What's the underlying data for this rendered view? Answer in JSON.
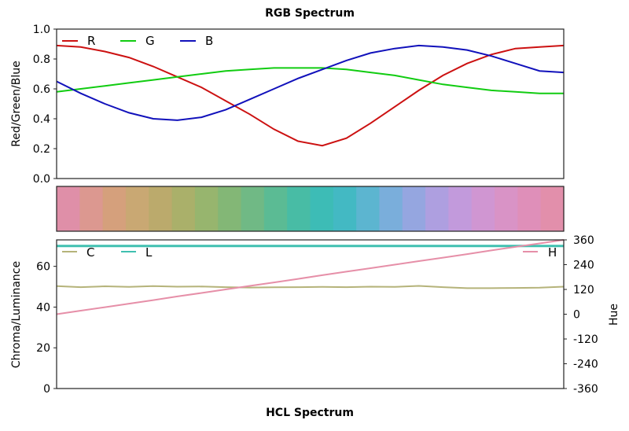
{
  "titles": {
    "top": "RGB Spectrum",
    "bottom": "HCL Spectrum"
  },
  "chart_data": [
    {
      "type": "line",
      "title": "RGB Spectrum",
      "xlabel": "",
      "ylabel": "Red/Green/Blue",
      "ylim": [
        0.0,
        1.0
      ],
      "yticks": [
        "0.0",
        "0.2",
        "0.4",
        "0.6",
        "0.8",
        "1.0"
      ],
      "legend_position": "upper left",
      "x": [
        0,
        1,
        2,
        3,
        4,
        5,
        6,
        7,
        8,
        9,
        10,
        11,
        12,
        13,
        14,
        15,
        16,
        17,
        18,
        19,
        20,
        21
      ],
      "series": [
        {
          "name": "R",
          "color": "#cc1111",
          "values": [
            0.89,
            0.88,
            0.85,
            0.81,
            0.75,
            0.68,
            0.61,
            0.52,
            0.43,
            0.33,
            0.25,
            0.22,
            0.27,
            0.37,
            0.48,
            0.59,
            0.69,
            0.77,
            0.83,
            0.87,
            0.88,
            0.89
          ]
        },
        {
          "name": "G",
          "color": "#11cc11",
          "values": [
            0.58,
            0.6,
            0.62,
            0.64,
            0.66,
            0.68,
            0.7,
            0.72,
            0.73,
            0.74,
            0.74,
            0.74,
            0.73,
            0.71,
            0.69,
            0.66,
            0.63,
            0.61,
            0.59,
            0.58,
            0.57,
            0.57
          ]
        },
        {
          "name": "B",
          "color": "#1111bb",
          "values": [
            0.65,
            0.57,
            0.5,
            0.44,
            0.4,
            0.39,
            0.41,
            0.46,
            0.53,
            0.6,
            0.67,
            0.73,
            0.79,
            0.84,
            0.87,
            0.89,
            0.88,
            0.86,
            0.82,
            0.77,
            0.72,
            0.71
          ]
        }
      ]
    },
    {
      "type": "heatmap",
      "title": "",
      "swatches": [
        "#df8fa8",
        "#dc9890",
        "#d5a07c",
        "#c9a873",
        "#bbaa6c",
        "#aab06a",
        "#97b56e",
        "#83b776",
        "#70b985",
        "#5bbb94",
        "#48bca5",
        "#3dbcb6",
        "#43b9c3",
        "#5cb5d0",
        "#7aaedb",
        "#95a6e0",
        "#ae9fe0",
        "#c29adc",
        "#d096d2",
        "#d993c6",
        "#df8fb9",
        "#e28fab"
      ]
    },
    {
      "type": "line",
      "title": "HCL Spectrum",
      "xlabel": "",
      "ylabel": "Chroma/Luminance",
      "ylabel_right": "Hue",
      "ylim": [
        0,
        73
      ],
      "ylim_right": [
        -360,
        360
      ],
      "yticks": [
        "0",
        "20",
        "40",
        "60"
      ],
      "yticks_right": [
        "-360",
        "-240",
        "-120",
        "0",
        "120",
        "240",
        "360"
      ],
      "legend_position": "upper left / upper right",
      "x": [
        0,
        1,
        2,
        3,
        4,
        5,
        6,
        7,
        8,
        9,
        10,
        11,
        12,
        13,
        14,
        15,
        16,
        17,
        18,
        19,
        20,
        21
      ],
      "series": [
        {
          "name": "C",
          "axis": "left",
          "color": "#b5b37a",
          "values": [
            50.3,
            49.8,
            50.2,
            49.9,
            50.3,
            50.0,
            50.1,
            49.8,
            49.6,
            49.7,
            49.8,
            49.9,
            49.8,
            50.0,
            49.9,
            50.4,
            49.8,
            49.3,
            49.3,
            49.4,
            49.5,
            50.0
          ]
        },
        {
          "name": "L",
          "axis": "left",
          "color": "#40c0b0",
          "values": [
            70,
            70,
            70,
            70,
            70,
            70,
            70,
            70,
            70,
            70,
            70,
            70,
            70,
            70,
            70,
            70,
            70,
            70,
            70,
            70,
            70,
            70
          ]
        },
        {
          "name": "H",
          "axis": "right",
          "color": "#e68fa8",
          "values": [
            0,
            17,
            34,
            51,
            68,
            86,
            103,
            120,
            137,
            154,
            171,
            189,
            206,
            223,
            240,
            257,
            274,
            291,
            309,
            326,
            343,
            360
          ]
        }
      ]
    }
  ],
  "top_chart": {
    "legend": [
      "R",
      "G",
      "B"
    ],
    "ylabel": "Red/Green/Blue",
    "yticks": [
      "0.0",
      "0.2",
      "0.4",
      "0.6",
      "0.8",
      "1.0"
    ]
  },
  "bottom_chart": {
    "legend_left": [
      "C",
      "L"
    ],
    "legend_right": [
      "H"
    ],
    "ylabel_left": "Chroma/Luminance",
    "ylabel_right": "Hue",
    "yticks_left": [
      "0",
      "20",
      "40",
      "60"
    ],
    "yticks_right": [
      "-360",
      "-240",
      "-120",
      "0",
      "120",
      "240",
      "360"
    ]
  }
}
